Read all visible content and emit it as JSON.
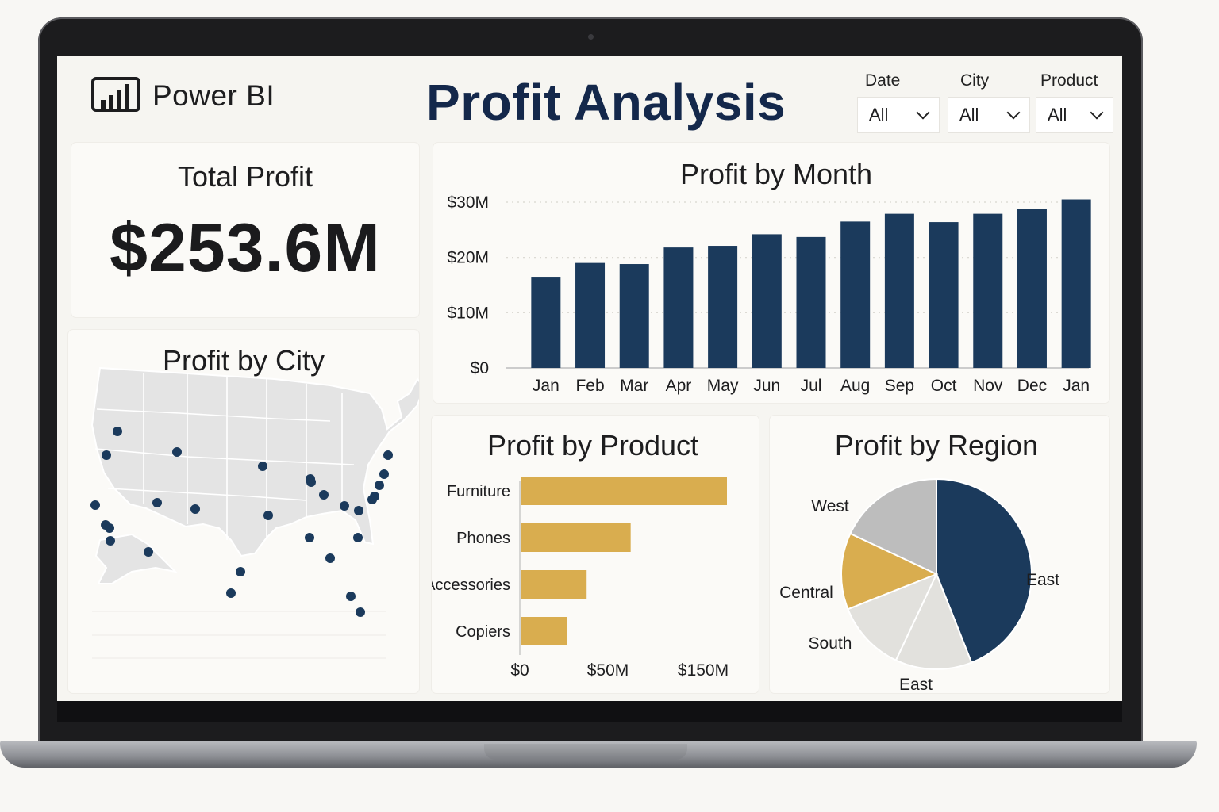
{
  "app": {
    "brand": "Power BI",
    "title": "Profit Analysis"
  },
  "filters": [
    {
      "label": "Date",
      "value": "All"
    },
    {
      "label": "City",
      "value": "All"
    },
    {
      "label": "Product",
      "value": "All"
    }
  ],
  "kpi": {
    "title": "Total Profit",
    "value": "$253.6M"
  },
  "map": {
    "title": "Profit by City"
  },
  "colors": {
    "navy": "#1b3a5c",
    "gold": "#d9ad4f",
    "gray": "#bdbdbd",
    "light_gray": "#e2e1dd",
    "title": "#14284b"
  },
  "chart_data": [
    {
      "type": "bar",
      "title": "Profit by Month",
      "categories": [
        "Jan",
        "Feb",
        "Mar",
        "Apr",
        "May",
        "Jun",
        "Jul",
        "Aug",
        "Sep",
        "Oct",
        "Nov",
        "Dec",
        "Jan"
      ],
      "values": [
        16.5,
        19,
        18.8,
        21.8,
        22.1,
        24.2,
        23.7,
        26.5,
        27.9,
        26.4,
        27.9,
        28.8,
        30.5
      ],
      "unit": "M",
      "y_ticks": [
        "$0",
        "$10M",
        "$20M",
        "$30M"
      ],
      "ylim": [
        0,
        30
      ],
      "grid": true
    },
    {
      "type": "bar",
      "orientation": "horizontal",
      "title": "Profit by Product",
      "categories": [
        "Furniture",
        "Phones",
        "Accessories",
        "Copiers"
      ],
      "values": [
        150,
        80,
        48,
        34
      ],
      "x_ticks": [
        "$0",
        "$50M",
        "$150M"
      ]
    },
    {
      "type": "pie",
      "title": "Profit by Region",
      "labels": [
        "East",
        "East",
        "South",
        "Central",
        "West"
      ],
      "values": [
        44,
        13,
        12,
        13,
        18
      ],
      "slice_colors": [
        "#1b3a5c",
        "#e2e1dd",
        "#e2e1dd",
        "#d9ad4f",
        "#bdbdbd"
      ]
    }
  ]
}
